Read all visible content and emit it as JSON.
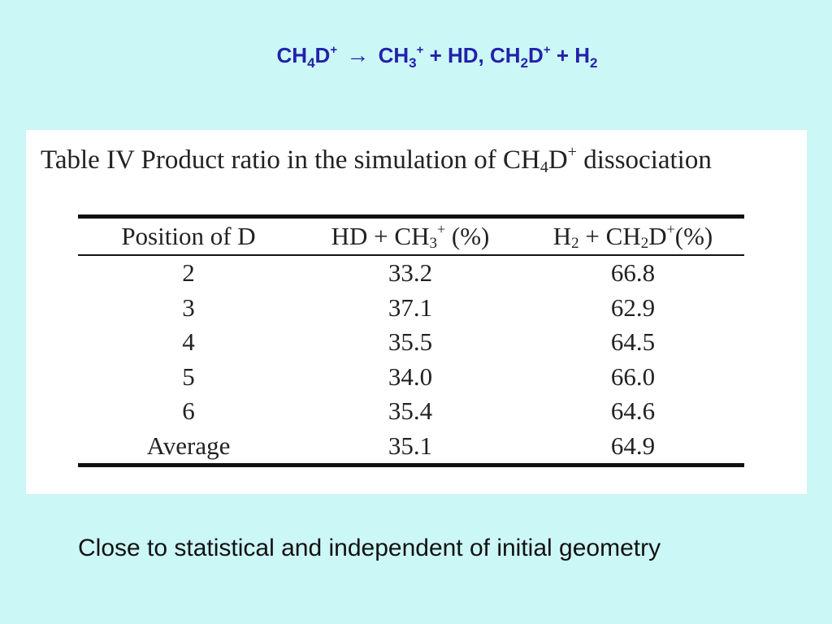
{
  "equation": {
    "t1": "CH",
    "s1": "4",
    "t2": "D",
    "p1": "+",
    "arrow": "→",
    "t3": "CH",
    "s2": "3",
    "p2": "+",
    "t4": "+ HD, CH",
    "s3": "2",
    "t5": "D",
    "p3": "+",
    "t6": "+ H",
    "s4": "2"
  },
  "caption": {
    "text1": "Table IV Product ratio in the simulation of CH",
    "sub": "4",
    "text2": "D",
    "sup": "+",
    "text3": " dissociation"
  },
  "table": {
    "headers": {
      "col1": "Position of D",
      "col2": {
        "a": "HD + CH",
        "sub": "3",
        "sup": "+",
        "b": " (%)"
      },
      "col3": {
        "a": "H",
        "sub1": "2",
        "b": " + CH",
        "sub2": "2",
        "c": "D",
        "sup": "+",
        "d": "(%)"
      }
    },
    "rows": [
      {
        "position": "2",
        "hd_ch3": "33.2",
        "h2_ch2d": "66.8"
      },
      {
        "position": "3",
        "hd_ch3": "37.1",
        "h2_ch2d": "62.9"
      },
      {
        "position": "4",
        "hd_ch3": "35.5",
        "h2_ch2d": "64.5"
      },
      {
        "position": "5",
        "hd_ch3": "34.0",
        "h2_ch2d": "66.0"
      },
      {
        "position": "6",
        "hd_ch3": "35.4",
        "h2_ch2d": "64.6"
      },
      {
        "position": "Average",
        "hd_ch3": "35.1",
        "h2_ch2d": "64.9"
      }
    ]
  },
  "note": "Close to statistical and independent of initial geometry",
  "colors": {
    "background": "#ccf7f7",
    "equation_text": "#2222aa",
    "panel": "#ffffff"
  }
}
